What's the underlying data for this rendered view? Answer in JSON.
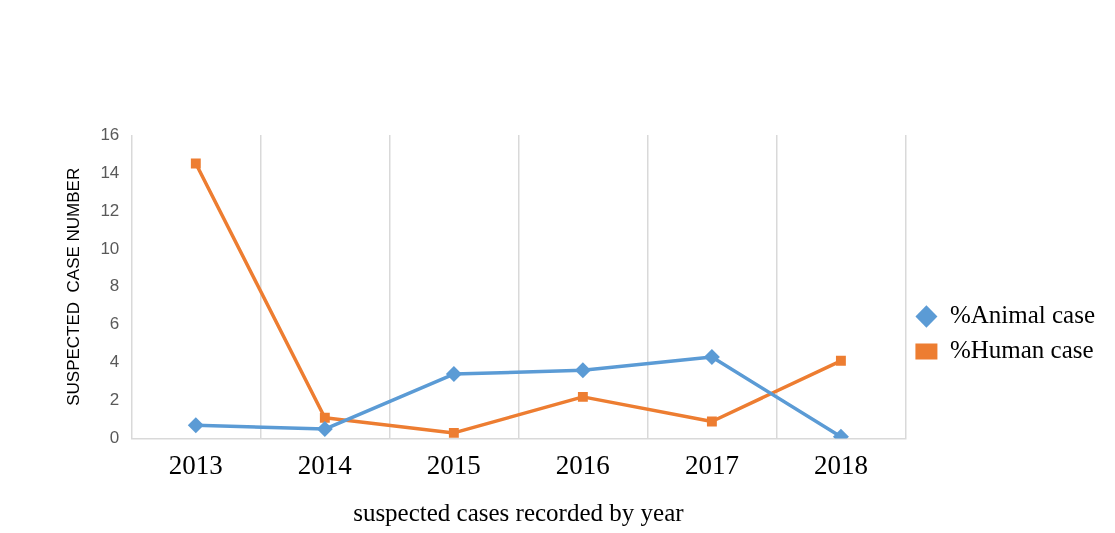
{
  "chart_data": {
    "type": "line",
    "xlabel": "suspected cases recorded by year",
    "ylabel": "SUSPECTED  CASE NUMBER",
    "categories": [
      "2013",
      "2014",
      "2015",
      "2016",
      "2017",
      "2018"
    ],
    "series": [
      {
        "name": "%Animal case",
        "color": "#5b9bd5",
        "marker": "diamond",
        "values": [
          0.7,
          0.5,
          3.4,
          3.6,
          4.3,
          0.1
        ]
      },
      {
        "name": "%Human case",
        "color": "#ed7d31",
        "marker": "square",
        "values": [
          14.5,
          1.1,
          0.3,
          2.2,
          0.9,
          4.1
        ]
      }
    ],
    "ylim": [
      0,
      16
    ],
    "yticks": [
      0,
      2,
      4,
      6,
      8,
      10,
      12,
      14,
      16
    ],
    "grid": "x",
    "legend": "right",
    "line_style": "solid"
  }
}
